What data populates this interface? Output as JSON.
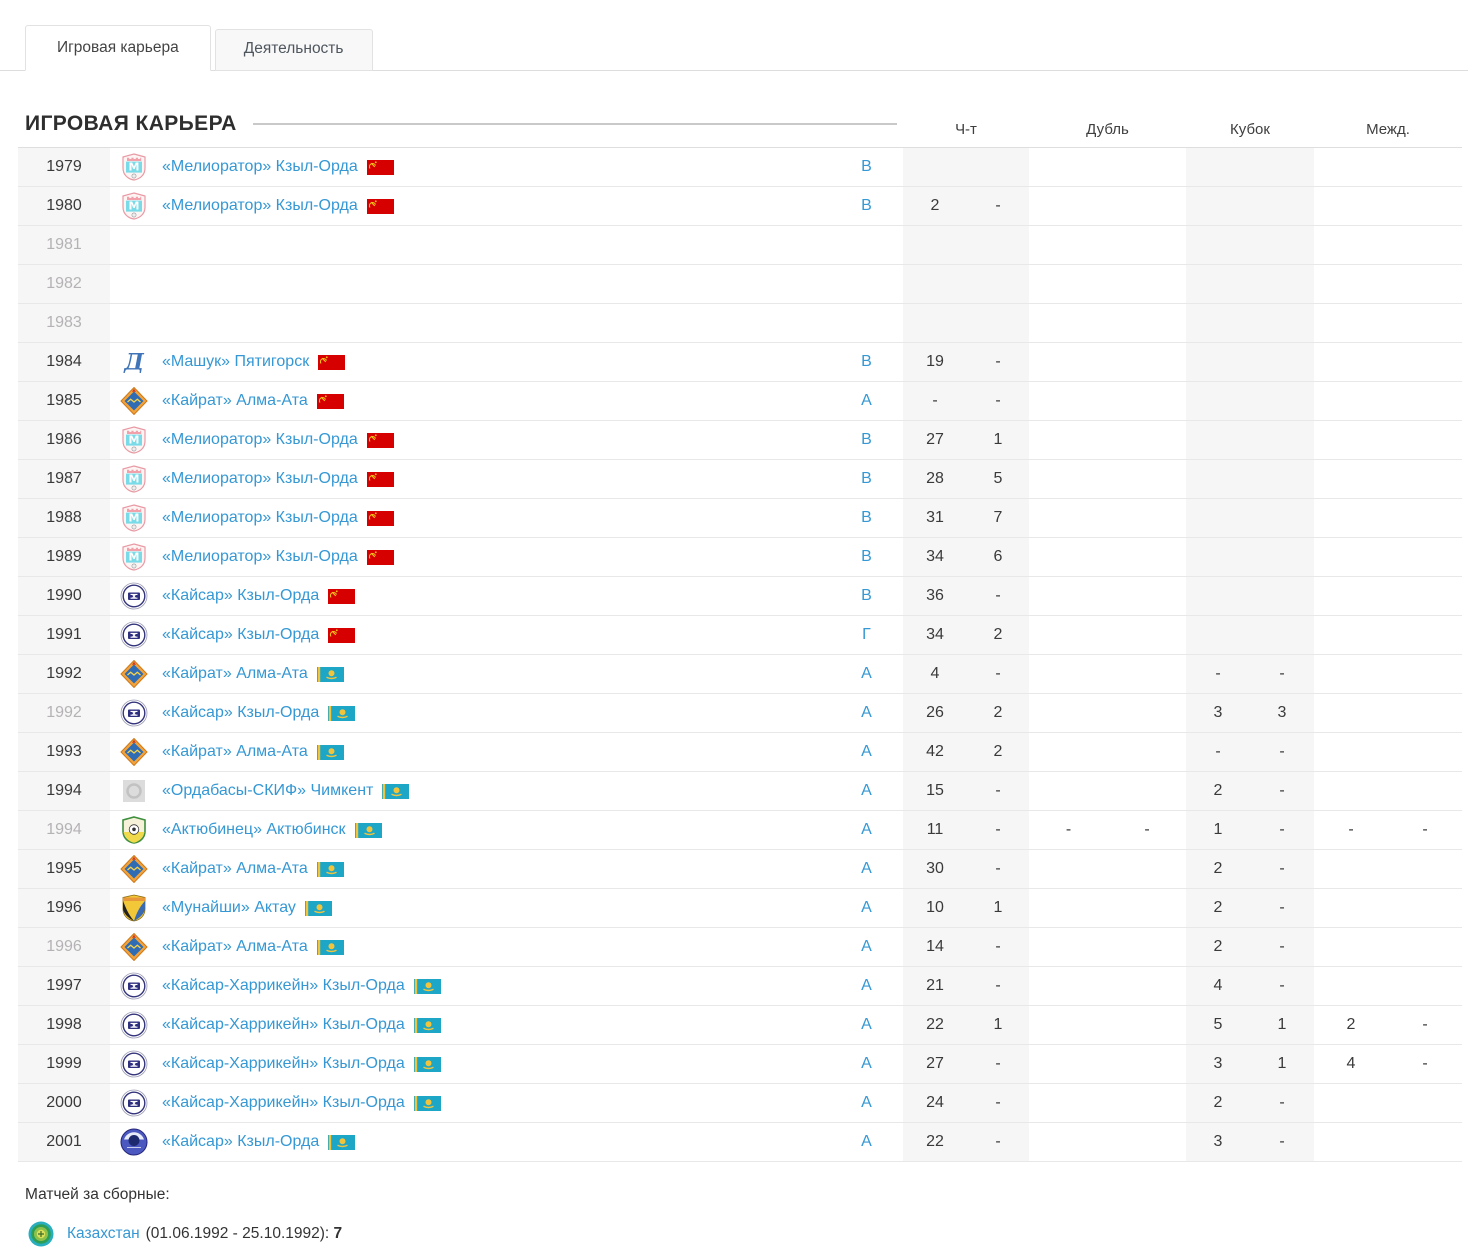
{
  "tabs": [
    {
      "label": "Игровая карьера",
      "active": true
    },
    {
      "label": "Деятельность",
      "active": false
    }
  ],
  "section": {
    "title": "ИГРОВАЯ КАРЬЕРА"
  },
  "table": {
    "column_groups": [
      "Ч-т",
      "Дубль",
      "Кубок",
      "Межд."
    ],
    "rows": [
      {
        "year": "1979",
        "muted": false,
        "club": "«Мелиоратор» Кзыл-Орда",
        "flag": "ussr",
        "logo": "meliorator",
        "league": "В",
        "stats": {
          "cht": [
            "",
            ""
          ],
          "dubl": [
            "",
            ""
          ],
          "kubok": [
            "",
            ""
          ],
          "mezhd": [
            "",
            ""
          ]
        }
      },
      {
        "year": "1980",
        "muted": false,
        "club": "«Мелиоратор» Кзыл-Орда",
        "flag": "ussr",
        "logo": "meliorator",
        "league": "В",
        "stats": {
          "cht": [
            "2",
            "-"
          ],
          "dubl": [
            "",
            ""
          ],
          "kubok": [
            "",
            ""
          ],
          "mezhd": [
            "",
            ""
          ]
        }
      },
      {
        "year": "1981",
        "muted": true,
        "club": "",
        "flag": "",
        "logo": "",
        "league": "",
        "stats": {
          "cht": [
            "",
            ""
          ],
          "dubl": [
            "",
            ""
          ],
          "kubok": [
            "",
            ""
          ],
          "mezhd": [
            "",
            ""
          ]
        }
      },
      {
        "year": "1982",
        "muted": true,
        "club": "",
        "flag": "",
        "logo": "",
        "league": "",
        "stats": {
          "cht": [
            "",
            ""
          ],
          "dubl": [
            "",
            ""
          ],
          "kubok": [
            "",
            ""
          ],
          "mezhd": [
            "",
            ""
          ]
        }
      },
      {
        "year": "1983",
        "muted": true,
        "club": "",
        "flag": "",
        "logo": "",
        "league": "",
        "stats": {
          "cht": [
            "",
            ""
          ],
          "dubl": [
            "",
            ""
          ],
          "kubok": [
            "",
            ""
          ],
          "mezhd": [
            "",
            ""
          ]
        }
      },
      {
        "year": "1984",
        "muted": false,
        "club": "«Машук» Пятигорск",
        "flag": "ussr",
        "logo": "mashuk",
        "league": "В",
        "stats": {
          "cht": [
            "19",
            "-"
          ],
          "dubl": [
            "",
            ""
          ],
          "kubok": [
            "",
            ""
          ],
          "mezhd": [
            "",
            ""
          ]
        }
      },
      {
        "year": "1985",
        "muted": false,
        "club": "«Кайрат» Алма-Ата",
        "flag": "ussr",
        "logo": "kairat",
        "league": "А",
        "stats": {
          "cht": [
            "-",
            "-"
          ],
          "dubl": [
            "",
            ""
          ],
          "kubok": [
            "",
            ""
          ],
          "mezhd": [
            "",
            ""
          ]
        }
      },
      {
        "year": "1986",
        "muted": false,
        "club": "«Мелиоратор» Кзыл-Орда",
        "flag": "ussr",
        "logo": "meliorator",
        "league": "В",
        "stats": {
          "cht": [
            "27",
            "1"
          ],
          "dubl": [
            "",
            ""
          ],
          "kubok": [
            "",
            ""
          ],
          "mezhd": [
            "",
            ""
          ]
        }
      },
      {
        "year": "1987",
        "muted": false,
        "club": "«Мелиоратор» Кзыл-Орда",
        "flag": "ussr",
        "logo": "meliorator",
        "league": "В",
        "stats": {
          "cht": [
            "28",
            "5"
          ],
          "dubl": [
            "",
            ""
          ],
          "kubok": [
            "",
            ""
          ],
          "mezhd": [
            "",
            ""
          ]
        }
      },
      {
        "year": "1988",
        "muted": false,
        "club": "«Мелиоратор» Кзыл-Орда",
        "flag": "ussr",
        "logo": "meliorator",
        "league": "В",
        "stats": {
          "cht": [
            "31",
            "7"
          ],
          "dubl": [
            "",
            ""
          ],
          "kubok": [
            "",
            ""
          ],
          "mezhd": [
            "",
            ""
          ]
        }
      },
      {
        "year": "1989",
        "muted": false,
        "club": "«Мелиоратор» Кзыл-Орда",
        "flag": "ussr",
        "logo": "meliorator",
        "league": "В",
        "stats": {
          "cht": [
            "34",
            "6"
          ],
          "dubl": [
            "",
            ""
          ],
          "kubok": [
            "",
            ""
          ],
          "mezhd": [
            "",
            ""
          ]
        }
      },
      {
        "year": "1990",
        "muted": false,
        "club": "«Кайсар» Кзыл-Орда",
        "flag": "ussr",
        "logo": "kaisar",
        "league": "В",
        "stats": {
          "cht": [
            "36",
            "-"
          ],
          "dubl": [
            "",
            ""
          ],
          "kubok": [
            "",
            ""
          ],
          "mezhd": [
            "",
            ""
          ]
        }
      },
      {
        "year": "1991",
        "muted": false,
        "club": "«Кайсар» Кзыл-Орда",
        "flag": "ussr",
        "logo": "kaisar",
        "league": "Г",
        "stats": {
          "cht": [
            "34",
            "2"
          ],
          "dubl": [
            "",
            ""
          ],
          "kubok": [
            "",
            ""
          ],
          "mezhd": [
            "",
            ""
          ]
        }
      },
      {
        "year": "1992",
        "muted": false,
        "club": "«Кайрат» Алма-Ата",
        "flag": "kz",
        "logo": "kairat",
        "league": "А",
        "stats": {
          "cht": [
            "4",
            "-"
          ],
          "dubl": [
            "",
            ""
          ],
          "kubok": [
            "-",
            "-"
          ],
          "mezhd": [
            "",
            ""
          ]
        }
      },
      {
        "year": "1992",
        "muted": true,
        "club": "«Кайсар» Кзыл-Орда",
        "flag": "kz",
        "logo": "kaisar",
        "league": "А",
        "stats": {
          "cht": [
            "26",
            "2"
          ],
          "dubl": [
            "",
            ""
          ],
          "kubok": [
            "3",
            "3"
          ],
          "mezhd": [
            "",
            ""
          ]
        }
      },
      {
        "year": "1993",
        "muted": false,
        "club": "«Кайрат» Алма-Ата",
        "flag": "kz",
        "logo": "kairat",
        "league": "А",
        "stats": {
          "cht": [
            "42",
            "2"
          ],
          "dubl": [
            "",
            ""
          ],
          "kubok": [
            "-",
            "-"
          ],
          "mezhd": [
            "",
            ""
          ]
        }
      },
      {
        "year": "1994",
        "muted": false,
        "club": "«Ордабасы-СКИФ» Чимкент",
        "flag": "kz",
        "logo": "ordabasy",
        "league": "А",
        "stats": {
          "cht": [
            "15",
            "-"
          ],
          "dubl": [
            "",
            ""
          ],
          "kubok": [
            "2",
            "-"
          ],
          "mezhd": [
            "",
            ""
          ]
        }
      },
      {
        "year": "1994",
        "muted": true,
        "club": "«Актюбинец» Актюбинск",
        "flag": "kz",
        "logo": "aktobe",
        "league": "А",
        "stats": {
          "cht": [
            "11",
            "-"
          ],
          "dubl": [
            "-",
            "-"
          ],
          "kubok": [
            "1",
            "-"
          ],
          "mezhd": [
            "-",
            "-"
          ]
        }
      },
      {
        "year": "1995",
        "muted": false,
        "club": "«Кайрат» Алма-Ата",
        "flag": "kz",
        "logo": "kairat",
        "league": "А",
        "stats": {
          "cht": [
            "30",
            "-"
          ],
          "dubl": [
            "",
            ""
          ],
          "kubok": [
            "2",
            "-"
          ],
          "mezhd": [
            "",
            ""
          ]
        }
      },
      {
        "year": "1996",
        "muted": false,
        "club": "«Мунайши» Актау",
        "flag": "kz",
        "logo": "munaishy",
        "league": "А",
        "stats": {
          "cht": [
            "10",
            "1"
          ],
          "dubl": [
            "",
            ""
          ],
          "kubok": [
            "2",
            "-"
          ],
          "mezhd": [
            "",
            ""
          ]
        }
      },
      {
        "year": "1996",
        "muted": true,
        "club": "«Кайрат» Алма-Ата",
        "flag": "kz",
        "logo": "kairat",
        "league": "А",
        "stats": {
          "cht": [
            "14",
            "-"
          ],
          "dubl": [
            "",
            ""
          ],
          "kubok": [
            "2",
            "-"
          ],
          "mezhd": [
            "",
            ""
          ]
        }
      },
      {
        "year": "1997",
        "muted": false,
        "club": "«Кайсар-Харрикейн» Кзыл-Орда",
        "flag": "kz",
        "logo": "kaisar",
        "league": "А",
        "stats": {
          "cht": [
            "21",
            "-"
          ],
          "dubl": [
            "",
            ""
          ],
          "kubok": [
            "4",
            "-"
          ],
          "mezhd": [
            "",
            ""
          ]
        }
      },
      {
        "year": "1998",
        "muted": false,
        "club": "«Кайсар-Харрикейн» Кзыл-Орда",
        "flag": "kz",
        "logo": "kaisar",
        "league": "А",
        "stats": {
          "cht": [
            "22",
            "1"
          ],
          "dubl": [
            "",
            ""
          ],
          "kubok": [
            "5",
            "1"
          ],
          "mezhd": [
            "2",
            "-"
          ]
        }
      },
      {
        "year": "1999",
        "muted": false,
        "club": "«Кайсар-Харрикейн» Кзыл-Орда",
        "flag": "kz",
        "logo": "kaisar",
        "league": "А",
        "stats": {
          "cht": [
            "27",
            "-"
          ],
          "dubl": [
            "",
            ""
          ],
          "kubok": [
            "3",
            "1"
          ],
          "mezhd": [
            "4",
            "-"
          ]
        }
      },
      {
        "year": "2000",
        "muted": false,
        "club": "«Кайсар-Харрикейн» Кзыл-Орда",
        "flag": "kz",
        "logo": "kaisar",
        "league": "А",
        "stats": {
          "cht": [
            "24",
            "-"
          ],
          "dubl": [
            "",
            ""
          ],
          "kubok": [
            "2",
            "-"
          ],
          "mezhd": [
            "",
            ""
          ]
        }
      },
      {
        "year": "2001",
        "muted": false,
        "club": "«Кайсар» Кзыл-Орда",
        "flag": "kz",
        "logo": "kaisar2001",
        "league": "А",
        "stats": {
          "cht": [
            "22",
            "-"
          ],
          "dubl": [
            "",
            ""
          ],
          "kubok": [
            "3",
            "-"
          ],
          "mezhd": [
            "",
            ""
          ]
        }
      }
    ]
  },
  "footer": {
    "heading": "Матчей за сборные:",
    "entries": [
      {
        "country": "Казахстан",
        "logo": "kazfa",
        "period": "(01.06.1992 - 25.10.1992):",
        "matches": "7"
      }
    ]
  },
  "colors": {
    "link_blue": "#3598d4",
    "row_band_gray": "#f6f6f6",
    "muted_year": "#b5b2b5",
    "ussr_flag_red": "#d60000",
    "kz_flag_teal": "#1ea6c6",
    "flag_gold": "#f2c43c"
  }
}
